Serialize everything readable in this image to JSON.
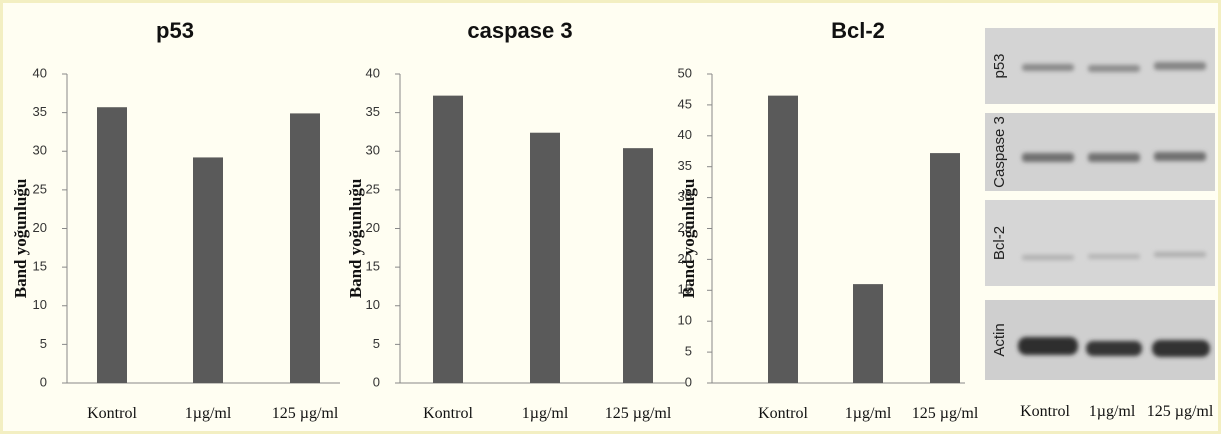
{
  "chart_data": [
    {
      "type": "bar",
      "title": "p53",
      "y_label": "Band yoğunluğu",
      "categories": [
        "Kontrol",
        "1µg/ml",
        "125 µg/ml"
      ],
      "values": [
        35.7,
        29.2,
        34.9
      ],
      "color": "#5a5a5a",
      "ylim": [
        0,
        40
      ],
      "yticks": [
        0,
        5,
        10,
        15,
        20,
        25,
        30,
        35,
        40
      ]
    },
    {
      "type": "bar",
      "title": "caspase 3",
      "y_label": "Band yoğunluğu",
      "categories": [
        "Kontrol",
        "1µg/ml",
        "125 µg/ml"
      ],
      "values": [
        37.2,
        32.4,
        30.4
      ],
      "color": "#5a5a5a",
      "ylim": [
        0,
        40
      ],
      "yticks": [
        0,
        5,
        10,
        15,
        20,
        25,
        30,
        35,
        40
      ]
    },
    {
      "type": "bar",
      "title": "Bcl-2",
      "y_label": "Band yoğunluğu",
      "categories": [
        "Kontrol",
        "1µg/ml",
        "125 µg/ml"
      ],
      "values": [
        46.5,
        16,
        37.2
      ],
      "color": "#5a5a5a",
      "ylim": [
        0,
        50
      ],
      "yticks": [
        0,
        5,
        10,
        15,
        20,
        25,
        30,
        35,
        40,
        45,
        50
      ]
    }
  ],
  "blot": {
    "rows": [
      "p53",
      "Caspase 3",
      "Bcl-2",
      "Actin"
    ],
    "lanes": [
      "Kontrol",
      "1µg/ml",
      "125 µg/ml"
    ]
  }
}
